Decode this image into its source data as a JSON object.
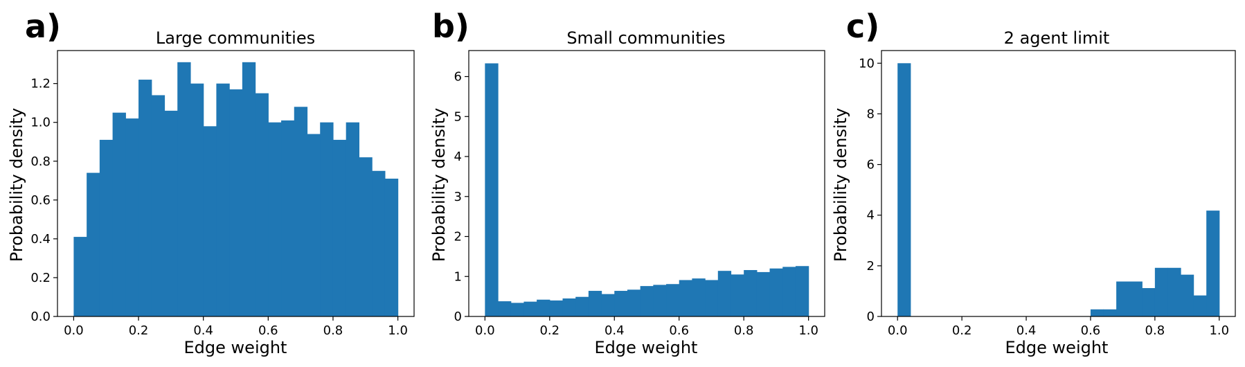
{
  "figure": {
    "bar_color": "#1f77b4",
    "axis_color": "#000000"
  },
  "chart_data": [
    {
      "type": "bar",
      "panel_letter": "a)",
      "title": "Large communities",
      "xlabel": "Edge weight",
      "ylabel": "Probability density",
      "xlim": [
        -0.05,
        1.05
      ],
      "ylim": [
        0,
        1.37
      ],
      "xticks": [
        0.0,
        0.2,
        0.4,
        0.6,
        0.8,
        1.0
      ],
      "xtick_labels": [
        "0.0",
        "0.2",
        "0.4",
        "0.6",
        "0.8",
        "1.0"
      ],
      "yticks": [
        0.0,
        0.2,
        0.4,
        0.6,
        0.8,
        1.0,
        1.2
      ],
      "ytick_labels": [
        "0.0",
        "0.2",
        "0.4",
        "0.6",
        "0.8",
        "1.0",
        "1.2"
      ],
      "bin_edges": [
        0,
        0.04,
        0.08,
        0.12,
        0.16,
        0.2,
        0.24,
        0.28,
        0.32,
        0.36,
        0.4,
        0.44,
        0.48,
        0.52,
        0.56,
        0.6,
        0.64,
        0.68,
        0.72,
        0.76,
        0.8,
        0.84,
        0.88,
        0.92,
        0.96,
        1.0
      ],
      "values": [
        0.41,
        0.74,
        0.91,
        1.05,
        1.02,
        1.22,
        1.14,
        1.06,
        1.31,
        1.2,
        0.98,
        1.2,
        1.17,
        1.31,
        1.15,
        1.0,
        1.01,
        1.08,
        0.94,
        1.0,
        0.91,
        1.0,
        0.82,
        0.75,
        0.71
      ]
    },
    {
      "type": "bar",
      "panel_letter": "b)",
      "title": "Small communities",
      "xlabel": "Edge weight",
      "ylabel": "Probability density",
      "xlim": [
        -0.05,
        1.05
      ],
      "ylim": [
        0,
        6.65
      ],
      "xticks": [
        0.0,
        0.2,
        0.4,
        0.6,
        0.8,
        1.0
      ],
      "xtick_labels": [
        "0.0",
        "0.2",
        "0.4",
        "0.6",
        "0.8",
        "1.0"
      ],
      "yticks": [
        0,
        1,
        2,
        3,
        4,
        5,
        6
      ],
      "ytick_labels": [
        "0",
        "1",
        "2",
        "3",
        "4",
        "5",
        "6"
      ],
      "bin_edges": [
        0,
        0.04,
        0.08,
        0.12,
        0.16,
        0.2,
        0.24,
        0.28,
        0.32,
        0.36,
        0.4,
        0.44,
        0.48,
        0.52,
        0.56,
        0.6,
        0.64,
        0.68,
        0.72,
        0.76,
        0.8,
        0.84,
        0.88,
        0.92,
        0.96,
        1.0
      ],
      "values": [
        6.33,
        0.38,
        0.34,
        0.37,
        0.42,
        0.4,
        0.45,
        0.49,
        0.64,
        0.56,
        0.64,
        0.67,
        0.76,
        0.79,
        0.81,
        0.91,
        0.95,
        0.91,
        1.14,
        1.05,
        1.16,
        1.11,
        1.2,
        1.24,
        1.26
      ]
    },
    {
      "type": "bar",
      "panel_letter": "c)",
      "title": "2 agent limit",
      "xlabel": "Edge weight",
      "ylabel": "Probability density",
      "xlim": [
        -0.05,
        1.05
      ],
      "ylim": [
        0,
        10.5
      ],
      "xticks": [
        0.0,
        0.2,
        0.4,
        0.6,
        0.8,
        1.0
      ],
      "xtick_labels": [
        "0.0",
        "0.2",
        "0.4",
        "0.6",
        "0.8",
        "1.0"
      ],
      "yticks": [
        0,
        2,
        4,
        6,
        8,
        10
      ],
      "ytick_labels": [
        "0",
        "2",
        "4",
        "6",
        "8",
        "10"
      ],
      "bin_edges": [
        0,
        0.04,
        0.08,
        0.12,
        0.16,
        0.2,
        0.24,
        0.28,
        0.32,
        0.36,
        0.4,
        0.44,
        0.48,
        0.52,
        0.56,
        0.6,
        0.64,
        0.68,
        0.72,
        0.76,
        0.8,
        0.84,
        0.88,
        0.92,
        0.96,
        1.0
      ],
      "values": [
        10.0,
        0,
        0,
        0,
        0,
        0,
        0,
        0,
        0,
        0,
        0,
        0,
        0,
        0,
        0,
        0.28,
        0.28,
        1.38,
        1.38,
        1.12,
        1.92,
        1.92,
        1.65,
        0.83,
        4.18
      ]
    }
  ]
}
